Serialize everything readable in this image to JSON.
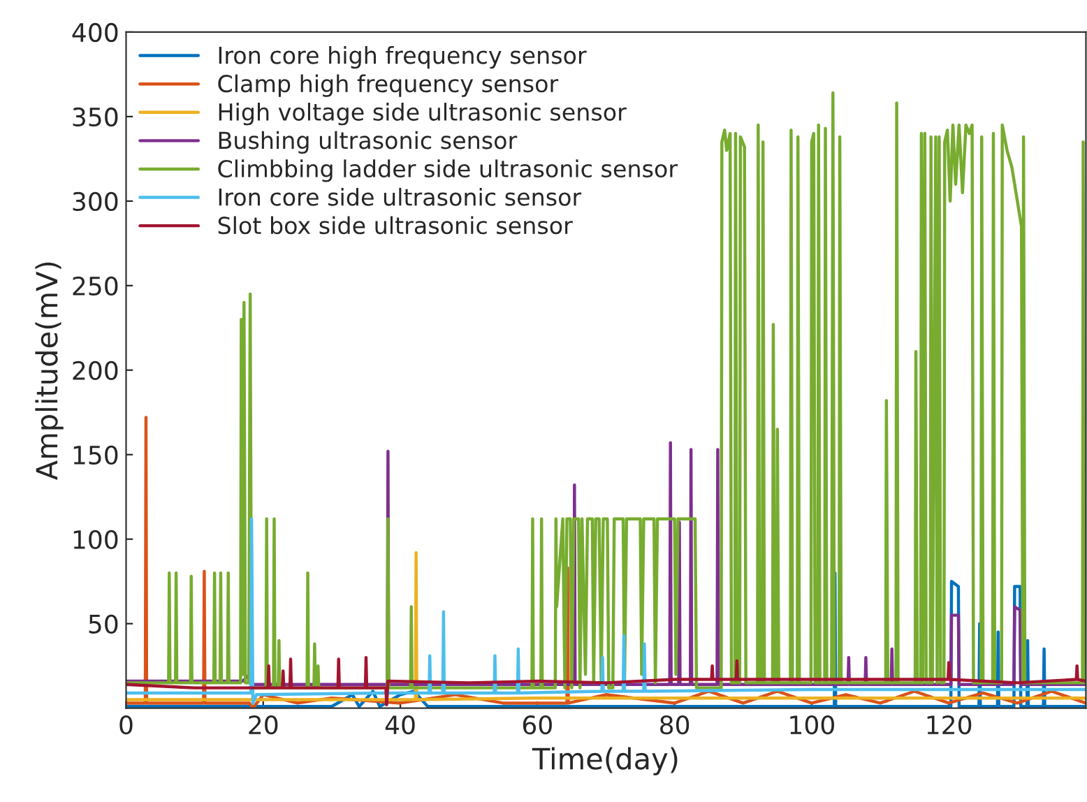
{
  "chart_data": {
    "type": "line",
    "xlabel": "Time(day)",
    "ylabel": "Amplitude(mV)",
    "xlim": [
      0,
      140
    ],
    "xticks": [
      0,
      20,
      40,
      60,
      80,
      100,
      120
    ],
    "ylim": [
      0,
      400
    ],
    "yticks": [
      50,
      100,
      150,
      200,
      250,
      300,
      350,
      400
    ],
    "grid": false,
    "legend": "top left",
    "marker": "none",
    "line_style": "solid",
    "series": [
      {
        "name": "Iron core high frequency sensor",
        "color": "#0072bd",
        "x": [
          0,
          30,
          33,
          34,
          36,
          37,
          40,
          42,
          44,
          103.3,
          103.4,
          103.5,
          120.3,
          120.4,
          121.4,
          121.5,
          124.4,
          124.5,
          124.6,
          127.1,
          127.2,
          127.3,
          129.5,
          129.6,
          130.4,
          130.5,
          131.4,
          131.5,
          131.6,
          133.8,
          133.9,
          134,
          140
        ],
        "values": [
          1,
          1,
          8,
          1,
          10,
          1,
          8,
          10,
          1,
          1,
          80,
          1,
          1,
          75,
          72,
          1,
          1,
          50,
          1,
          1,
          45,
          1,
          1,
          72,
          72,
          1,
          1,
          40,
          1,
          1,
          35,
          1,
          1
        ]
      },
      {
        "name": "Clamp high frequency sensor",
        "color": "#d95319",
        "x": [
          0,
          2.8,
          2.9,
          3.0,
          11.3,
          11.4,
          11.5,
          18,
          18.5,
          20,
          25,
          30,
          40,
          48,
          55,
          64.3,
          64.4,
          64.5,
          70,
          80,
          85,
          90,
          95,
          100,
          105,
          110,
          115,
          120,
          125,
          130,
          135,
          140
        ],
        "values": [
          3,
          3,
          172,
          3,
          3,
          81,
          3,
          3,
          0,
          8,
          3,
          6,
          3,
          8,
          3,
          3,
          83,
          3,
          8,
          3,
          10,
          3,
          10,
          3,
          8,
          3,
          10,
          3,
          9,
          3,
          10,
          3
        ]
      },
      {
        "name": "High voltage side ultrasonic sensor",
        "color": "#edb120",
        "x": [
          0,
          18,
          42.2,
          42.3,
          42.4,
          60,
          100,
          140
        ],
        "values": [
          5,
          5,
          5,
          92,
          5,
          6,
          6,
          6
        ]
      },
      {
        "name": "Bushing ultrasonic sensor",
        "color": "#7e2f8e",
        "x": [
          0,
          17,
          18,
          18.5,
          38.1,
          38.2,
          38.3,
          65.3,
          65.4,
          65.5,
          79.3,
          79.4,
          79.5,
          80.6,
          80.7,
          80.8,
          82.3,
          82.4,
          82.5,
          86.2,
          86.3,
          86.4,
          105.3,
          105.4,
          105.5,
          107.8,
          107.9,
          108,
          111.6,
          111.7,
          111.8,
          120.3,
          120.4,
          121.4,
          121.5,
          129.5,
          129.6,
          130.4,
          130.5,
          140
        ],
        "values": [
          16,
          16,
          20,
          14,
          14,
          152,
          14,
          14,
          132,
          14,
          14,
          157,
          14,
          14,
          110,
          14,
          14,
          153,
          14,
          14,
          153,
          14,
          14,
          30,
          14,
          14,
          30,
          14,
          14,
          35,
          14,
          14,
          55,
          55,
          14,
          14,
          60,
          58,
          14,
          14
        ]
      },
      {
        "name": "Climbbing ladder side ultrasonic sensor",
        "color": "#77ac30",
        "x": [
          0,
          6.2,
          6.3,
          6.4,
          7.2,
          7.3,
          7.4,
          9.4,
          9.5,
          9.6,
          12.8,
          12.9,
          13.0,
          13.7,
          13.8,
          13.9,
          14.8,
          14.9,
          15.0,
          16.7,
          16.8,
          17.0,
          17.2,
          17.4,
          17.9,
          18.1,
          18.3,
          20.4,
          20.5,
          20.6,
          21.5,
          21.6,
          21.7,
          22.2,
          22.3,
          22.4,
          26.4,
          26.5,
          26.6,
          27.4,
          27.5,
          27.6,
          27.9,
          28.0,
          28.1,
          38.1,
          38.2,
          38.3,
          41.5,
          41.6,
          41.7,
          59.2,
          59.3,
          59.4,
          60.5,
          60.6,
          60.7,
          62.6,
          62.7,
          62.8,
          63.7,
          64.0,
          64.3,
          64.8,
          65.0,
          65.3,
          66.0,
          66.2,
          66.5,
          67.0,
          67.3,
          68.0,
          68.2,
          68.5,
          69.0,
          69.3,
          69.6,
          70.2,
          70.4,
          71,
          71.2,
          72.5,
          72.7,
          73,
          75,
          75.2,
          75.5,
          77,
          77.2,
          77.5,
          80,
          80.2,
          80.5,
          83,
          83.2,
          86.8,
          86.9,
          87.3,
          87.6,
          88.1,
          88.3,
          88.8,
          88.9,
          89.1,
          89.5,
          89.6,
          90.2,
          90.4,
          92.1,
          92.2,
          92.4,
          92.8,
          92.9,
          93.1,
          94.3,
          94.4,
          94.6,
          94.9,
          95.0,
          95.2,
          96.9,
          97.0,
          97.2,
          97.9,
          98.0,
          98.2,
          99.9,
          100.0,
          100.3,
          100.5,
          100.9,
          101.0,
          101.2,
          101.9,
          102.0,
          102.2,
          102.9,
          103.1,
          103.3,
          104.0,
          104.1,
          104.3,
          110.8,
          110.9,
          111.1,
          112.3,
          112.4,
          112.6,
          115.1,
          115.2,
          115.4,
          115.9,
          116.0,
          116.2,
          116.5,
          116.7,
          117.3,
          117.4,
          117.6,
          118.1,
          118.3,
          118.6,
          118.8,
          119.3,
          119.4,
          119.8,
          120.2,
          120.6,
          121.0,
          121.5,
          122,
          122.5,
          123,
          123.4,
          123.6,
          124.7,
          124.8,
          125.0,
          126.4,
          126.5,
          126.7,
          127.7,
          127.8,
          128.5,
          129.2,
          130,
          130.6,
          130.8,
          130.9,
          131.1,
          139.5,
          139.6,
          139.8,
          140
        ],
        "values": [
          15,
          15,
          80,
          15,
          15,
          80,
          15,
          15,
          78,
          15,
          15,
          80,
          15,
          15,
          80,
          15,
          15,
          80,
          15,
          15,
          230,
          20,
          240,
          15,
          15,
          245,
          12,
          12,
          112,
          12,
          12,
          112,
          12,
          12,
          40,
          12,
          12,
          80,
          12,
          12,
          38,
          12,
          12,
          25,
          12,
          12,
          112,
          12,
          12,
          60,
          12,
          12,
          112,
          12,
          12,
          112,
          12,
          12,
          112,
          60,
          112,
          12,
          112,
          112,
          12,
          112,
          112,
          12,
          112,
          20,
          112,
          112,
          15,
          112,
          112,
          15,
          112,
          112,
          12,
          12,
          112,
          112,
          15,
          112,
          112,
          20,
          112,
          112,
          15,
          112,
          112,
          20,
          112,
          112,
          12,
          12,
          335,
          342,
          330,
          340,
          15,
          15,
          340,
          15,
          15,
          338,
          332,
          15,
          15,
          345,
          15,
          15,
          335,
          15,
          15,
          227,
          15,
          15,
          165,
          15,
          15,
          342,
          15,
          15,
          338,
          15,
          15,
          335,
          340,
          15,
          15,
          345,
          15,
          15,
          343,
          15,
          15,
          364,
          15,
          15,
          338,
          15,
          15,
          182,
          15,
          15,
          358,
          15,
          15,
          211,
          15,
          15,
          340,
          15,
          340,
          15,
          15,
          338,
          15,
          338,
          15,
          338,
          15,
          15,
          335,
          342,
          300,
          345,
          310,
          345,
          305,
          345,
          340,
          345,
          15,
          15,
          338,
          15,
          15,
          340,
          15,
          15,
          345,
          330,
          320,
          300,
          285,
          15,
          338,
          15,
          15,
          335,
          15,
          15
        ]
      },
      {
        "name": "Iron core side ultrasonic sensor",
        "color": "#4dbeee",
        "x": [
          0,
          17,
          18.2,
          18.3,
          18.5,
          19,
          38,
          44.2,
          44.3,
          44.4,
          46.2,
          46.3,
          46.4,
          53.7,
          53.8,
          53.9,
          57.1,
          57.2,
          57.3,
          69.4,
          69.5,
          69.6,
          72.5,
          72.6,
          72.7,
          75.5,
          75.6,
          75.7,
          100,
          140
        ],
        "values": [
          9,
          9,
          9,
          112,
          3,
          8,
          9,
          9,
          31,
          9,
          9,
          57,
          9,
          9,
          31,
          9,
          9,
          35,
          9,
          10,
          30,
          10,
          10,
          43,
          10,
          10,
          38,
          10,
          11,
          11
        ]
      },
      {
        "name": "Slot box side ultrasonic sensor",
        "color": "#a2142f",
        "x": [
          0,
          10,
          20.7,
          20.8,
          20.9,
          22.8,
          22.9,
          23,
          23.9,
          24,
          24.1,
          30.9,
          31,
          31.1,
          34.9,
          35,
          35.1,
          37.9,
          38,
          38.2,
          50,
          60,
          70,
          80,
          85.4,
          85.5,
          85.6,
          89,
          89.1,
          89.2,
          100,
          110,
          119.9,
          120,
          120.1,
          130,
          138.6,
          138.7,
          138.8,
          140
        ],
        "values": [
          14,
          12,
          12,
          25,
          12,
          12,
          22,
          12,
          12,
          29,
          12,
          12,
          29,
          12,
          12,
          30,
          12,
          12,
          2,
          16,
          15,
          16,
          15,
          17,
          17,
          25,
          17,
          17,
          28,
          17,
          17,
          17,
          17,
          27,
          17,
          15,
          17,
          25,
          17,
          16
        ]
      }
    ]
  }
}
